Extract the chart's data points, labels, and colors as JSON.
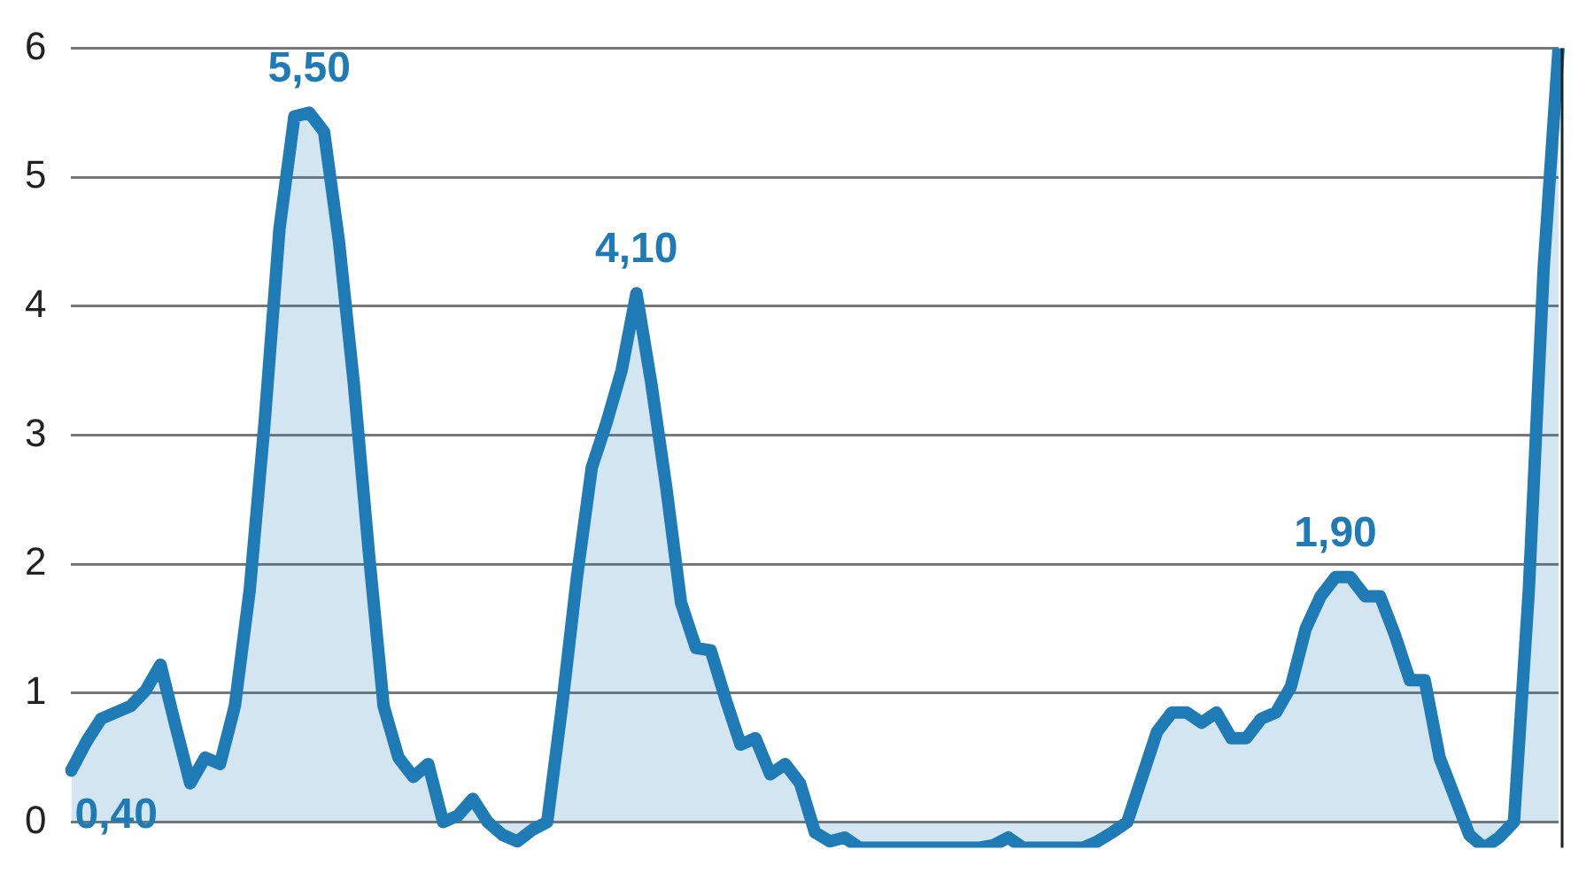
{
  "chart_data": {
    "type": "area",
    "color": "#1f7bb6",
    "categories": [
      null,
      null,
      null,
      null,
      null,
      null,
      null,
      null,
      null,
      null,
      null,
      null,
      null,
      null,
      null,
      null,
      null,
      null,
      null,
      null,
      null,
      null,
      null,
      null,
      null,
      null,
      null,
      null,
      null,
      null,
      null,
      null,
      null,
      null,
      null,
      null,
      null,
      null,
      null,
      null,
      null,
      null,
      null,
      null,
      null,
      null,
      null,
      null,
      null,
      null,
      null,
      null,
      null,
      null,
      null,
      null,
      null,
      null,
      null,
      null,
      null,
      null,
      null,
      null,
      null,
      null,
      null,
      null,
      null,
      null,
      null,
      null,
      null,
      null,
      null,
      null,
      null,
      null,
      null,
      null,
      null,
      null,
      null,
      null,
      null,
      null,
      null,
      null,
      null,
      null,
      null,
      null,
      null,
      null,
      null,
      null,
      null,
      null,
      null,
      null,
      null
    ],
    "values": [
      0.4,
      0.62,
      0.8,
      0.85,
      0.9,
      1.02,
      1.22,
      0.75,
      0.3,
      0.5,
      0.45,
      0.9,
      1.8,
      3.1,
      4.6,
      5.47,
      5.5,
      5.35,
      4.5,
      3.4,
      2.1,
      0.9,
      0.5,
      0.35,
      0.45,
      0.0,
      0.05,
      0.18,
      0.0,
      -0.1,
      -0.15,
      -0.06,
      0.0,
      0.9,
      1.9,
      2.75,
      3.1,
      3.5,
      4.1,
      3.4,
      2.6,
      1.7,
      1.35,
      1.33,
      0.95,
      0.6,
      0.65,
      0.37,
      0.45,
      0.3,
      -0.08,
      -0.15,
      -0.12,
      -0.2,
      -0.2,
      -0.2,
      -0.2,
      -0.2,
      -0.2,
      -0.2,
      -0.2,
      -0.2,
      -0.18,
      -0.12,
      -0.2,
      -0.2,
      -0.2,
      -0.2,
      -0.2,
      -0.15,
      -0.08,
      0.0,
      0.35,
      0.7,
      0.85,
      0.85,
      0.77,
      0.85,
      0.65,
      0.65,
      0.8,
      0.85,
      1.05,
      1.5,
      1.75,
      1.9,
      1.9,
      1.75,
      1.75,
      1.45,
      1.1,
      1.1,
      0.5,
      0.2,
      -0.1,
      -0.2,
      -0.12,
      0.0,
      1.8,
      4.3,
      6
    ],
    "value_labels": [
      "0,40",
      null,
      null,
      null,
      null,
      null,
      null,
      null,
      null,
      null,
      null,
      null,
      null,
      null,
      null,
      null,
      "5,50",
      null,
      null,
      null,
      null,
      null,
      null,
      null,
      null,
      null,
      null,
      null,
      null,
      null,
      null,
      null,
      null,
      null,
      null,
      null,
      null,
      null,
      "4,10",
      null,
      null,
      null,
      null,
      null,
      null,
      null,
      null,
      null,
      null,
      null,
      null,
      null,
      null,
      null,
      null,
      null,
      null,
      null,
      null,
      null,
      null,
      null,
      null,
      null,
      null,
      null,
      null,
      null,
      null,
      null,
      null,
      null,
      null,
      null,
      null,
      null,
      null,
      null,
      null,
      null,
      null,
      null,
      null,
      null,
      null,
      "1,90",
      null,
      null,
      null,
      null,
      null,
      null,
      null,
      null,
      null,
      null,
      null,
      null,
      null,
      null,
      null
    ],
    "ylim": [
      -0.2,
      6
    ],
    "yticks": [
      0,
      1,
      2,
      3,
      4,
      5,
      6
    ],
    "grid": "y",
    "tick_labels": "y",
    "line_style": "solid",
    "marker": "none"
  }
}
